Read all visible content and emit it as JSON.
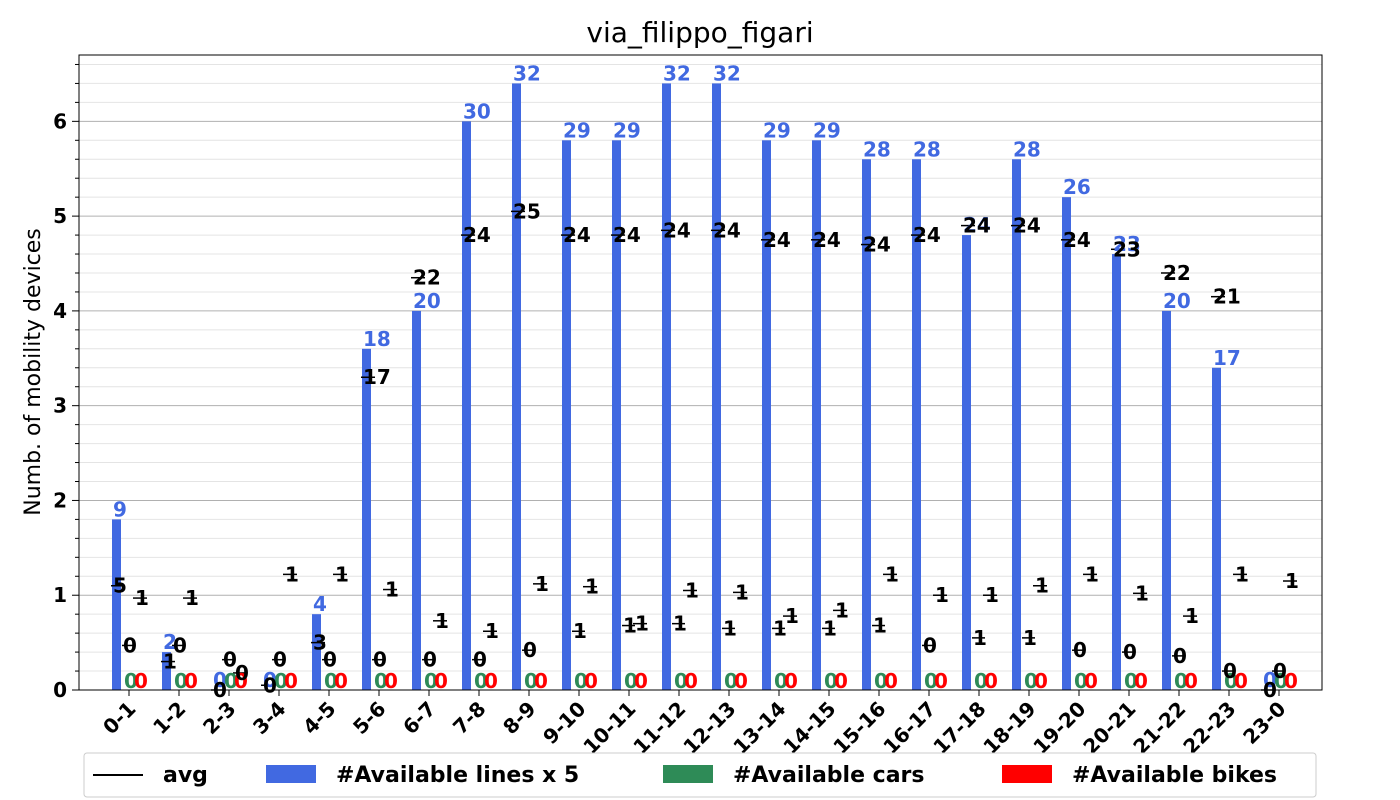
{
  "chart_data": {
    "type": "bar",
    "title": "via_filippo_figari",
    "ylabel": "Numb. of mobility devices",
    "xlabel": "",
    "ylim": [
      0,
      6.7
    ],
    "yticks": [
      "0",
      "1",
      "2",
      "3",
      "4",
      "5",
      "6"
    ],
    "grid": true,
    "legend_position": "bottom",
    "categories": [
      "0-1",
      "1-2",
      "2-3",
      "3-4",
      "4-5",
      "5-6",
      "6-7",
      "7-8",
      "8-9",
      "9-10",
      "10-11",
      "11-12",
      "12-13",
      "13-14",
      "14-15",
      "15-16",
      "16-17",
      "17-18",
      "18-19",
      "19-20",
      "20-21",
      "21-22",
      "22-23",
      "23-0"
    ],
    "series": [
      {
        "name": "#Available lines x 5",
        "color": "#4169e1",
        "values": [
          1.8,
          0.4,
          0,
          0,
          0.8,
          3.6,
          4.0,
          6.0,
          6.4,
          5.8,
          5.8,
          6.4,
          6.4,
          5.8,
          5.8,
          5.6,
          5.6,
          4.8,
          5.6,
          5.2,
          4.6,
          4.0,
          3.4,
          0
        ],
        "labels": [
          "9",
          "2",
          "0",
          "0",
          "4",
          "18",
          "20",
          "30",
          "32",
          "29",
          "29",
          "32",
          "32",
          "29",
          "29",
          "28",
          "28",
          "24",
          "28",
          "26",
          "23",
          "20",
          "17",
          "0"
        ]
      },
      {
        "name": "#Available cars",
        "color": "#2e8b57",
        "values": [
          0,
          0,
          0,
          0,
          0,
          0,
          0,
          0,
          0,
          0,
          0,
          0,
          0,
          0,
          0,
          0,
          0,
          0,
          0,
          0,
          0,
          0,
          0,
          0
        ],
        "labels": [
          "0",
          "0",
          "0",
          "0",
          "0",
          "0",
          "0",
          "0",
          "0",
          "0",
          "0",
          "0",
          "0",
          "0",
          "0",
          "0",
          "0",
          "0",
          "0",
          "0",
          "0",
          "0",
          "0",
          "0"
        ]
      },
      {
        "name": "#Available bikes",
        "color": "#ff0000",
        "values": [
          0,
          0,
          0,
          0,
          0,
          0,
          0,
          0,
          0,
          0,
          0,
          0,
          0,
          0,
          0,
          0,
          0,
          0,
          0,
          0,
          0,
          0,
          0,
          0
        ],
        "labels": [
          "0",
          "0",
          "0",
          "0",
          "0",
          "0",
          "0",
          "0",
          "0",
          "0",
          "0",
          "0",
          "0",
          "0",
          "0",
          "0",
          "0",
          "0",
          "0",
          "0",
          "0",
          "0",
          "0",
          "0"
        ]
      }
    ],
    "avg": {
      "name": "avg",
      "color": "#000000",
      "lines": [
        1.1,
        0.3,
        0,
        0.05,
        0.5,
        3.3,
        4.35,
        4.8,
        5.05,
        4.8,
        4.8,
        4.85,
        4.85,
        4.75,
        4.75,
        4.7,
        4.8,
        4.9,
        4.9,
        4.75,
        4.65,
        4.4,
        4.15,
        0
      ],
      "lines_labels": [
        "5",
        "1",
        "0",
        "0",
        "3",
        "17",
        "22",
        "24",
        "25",
        "24",
        "24",
        "24",
        "24",
        "24",
        "24",
        "24",
        "24",
        "24",
        "24",
        "24",
        "23",
        "22",
        "21",
        "0"
      ],
      "cars": [
        0.47,
        0.47,
        0.32,
        0.32,
        0.32,
        0.32,
        0.32,
        0.32,
        0.42,
        0.62,
        0.68,
        0.7,
        0.65,
        0.65,
        0.65,
        0.68,
        0.47,
        0.55,
        0.55,
        0.42,
        0.4,
        0.36,
        0.2,
        0.2
      ],
      "cars_labels": [
        "0",
        "0",
        "0",
        "0",
        "0",
        "0",
        "0",
        "0",
        "0",
        "1",
        "1",
        "1",
        "1",
        "1",
        "1",
        "1",
        "0",
        "1",
        "1",
        "0",
        "0",
        "0",
        "0",
        "0"
      ],
      "bikes": [
        0.97,
        0.97,
        0.18,
        1.22,
        1.22,
        1.06,
        0.73,
        0.62,
        1.12,
        1.09,
        0.7,
        1.05,
        1.03,
        0.78,
        0.84,
        1.22,
        1.0,
        1.0,
        1.1,
        1.22,
        1.02,
        0.78,
        1.22,
        1.15
      ],
      "bikes_labels": [
        "1",
        "1",
        "0",
        "1",
        "1",
        "1",
        "1",
        "1",
        "1",
        "1",
        "1",
        "1",
        "1",
        "1",
        "1",
        "1",
        "1",
        "1",
        "1",
        "1",
        "1",
        "1",
        "1",
        "1"
      ]
    }
  }
}
